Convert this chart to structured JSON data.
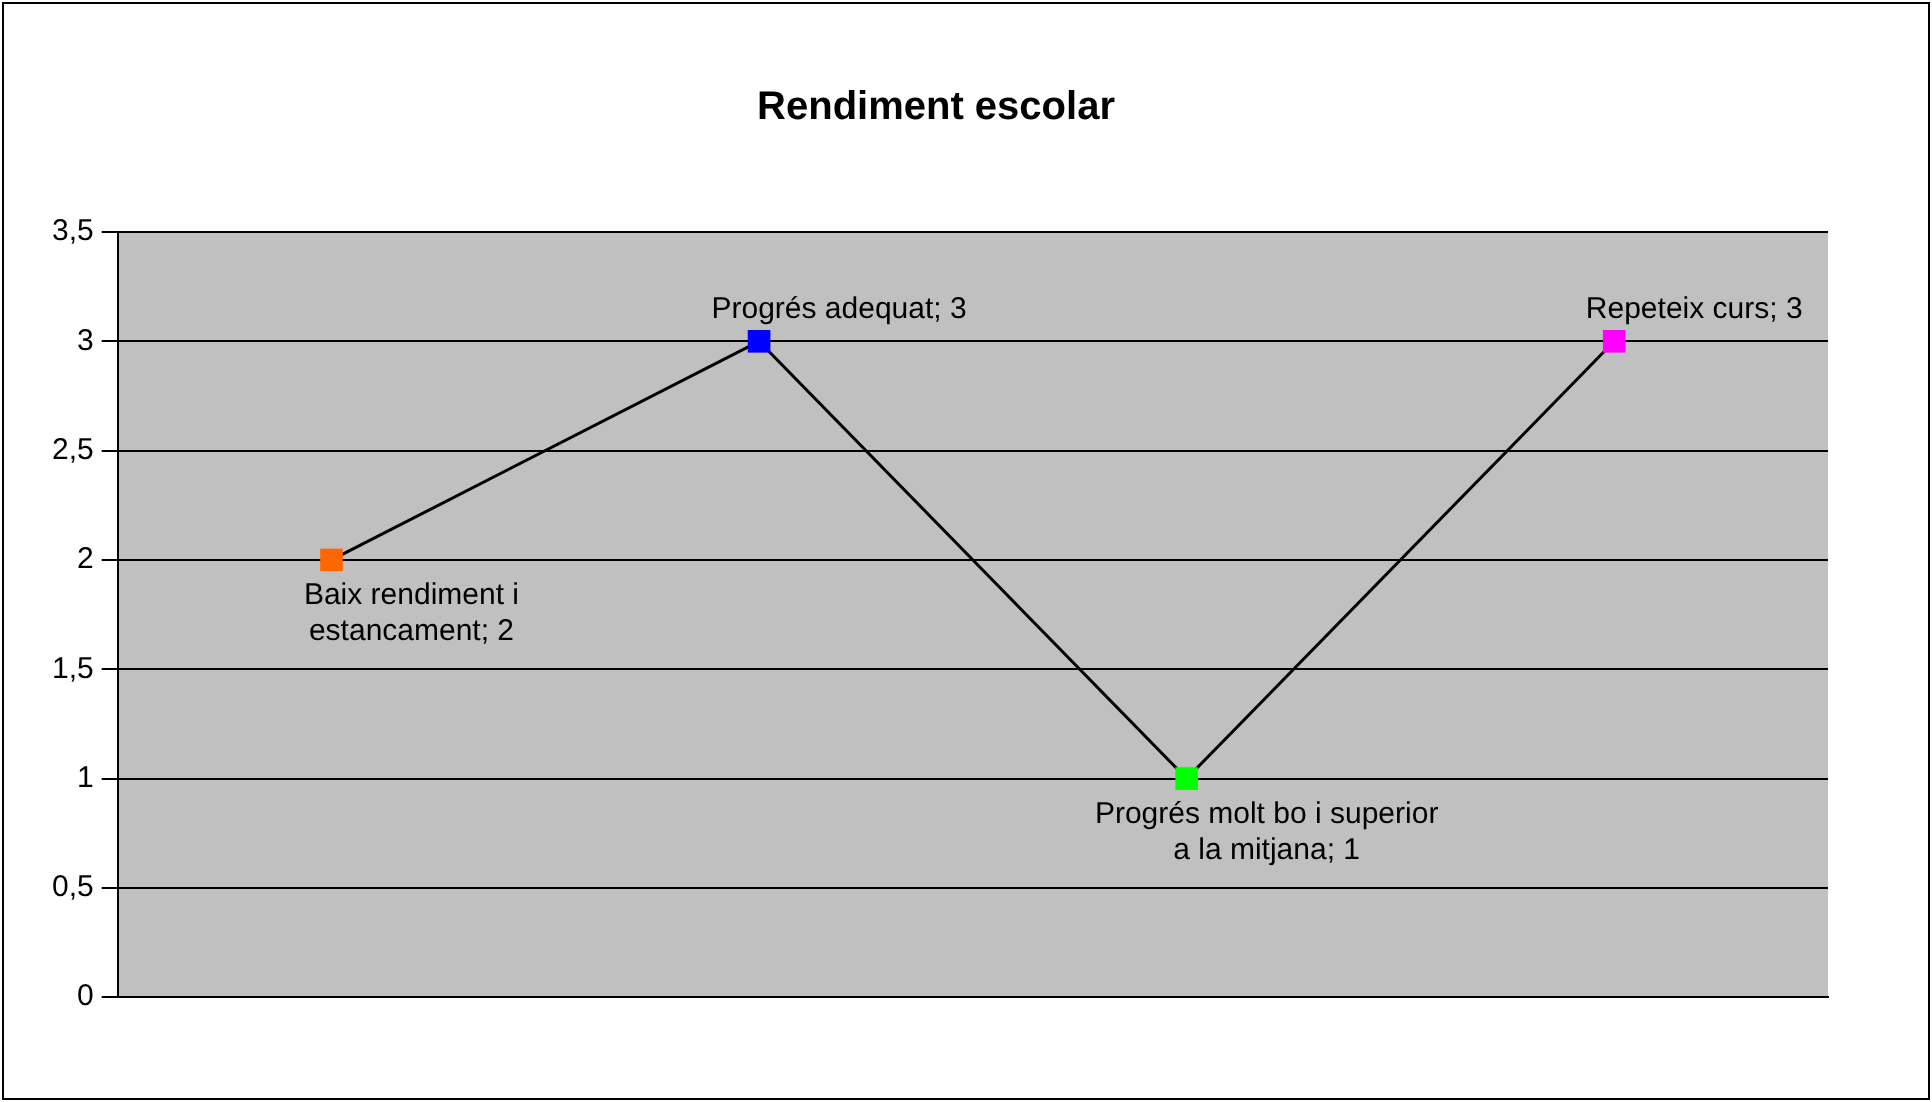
{
  "chart_data": {
    "type": "line",
    "title": "Rendiment escolar",
    "categories": [
      null,
      null,
      null,
      null
    ],
    "values": [
      2,
      3,
      1,
      3
    ],
    "colors": [
      "#ff6600",
      "#0000ff",
      "#00ff00",
      "#ff00ff"
    ],
    "value_labels": [
      "Baix rendiment i estancament; 2",
      "Progrés adequat; 3",
      "Progrés molt bo i superior a la mitjana; 1",
      "Repeteix curs; 3"
    ],
    "color": "#000000",
    "ylim": [
      0,
      3.5
    ],
    "yticks": [
      0,
      {
        "value": 0.5,
        "label": "0,5"
      },
      1,
      {
        "value": 1.5,
        "label": "1,5"
      },
      2,
      {
        "value": 2.5,
        "label": "2,5"
      },
      3,
      {
        "value": 3.5,
        "label": "3,5"
      }
    ],
    "grid": "y",
    "legend": false,
    "marker": "square",
    "line_style": "solid"
  }
}
